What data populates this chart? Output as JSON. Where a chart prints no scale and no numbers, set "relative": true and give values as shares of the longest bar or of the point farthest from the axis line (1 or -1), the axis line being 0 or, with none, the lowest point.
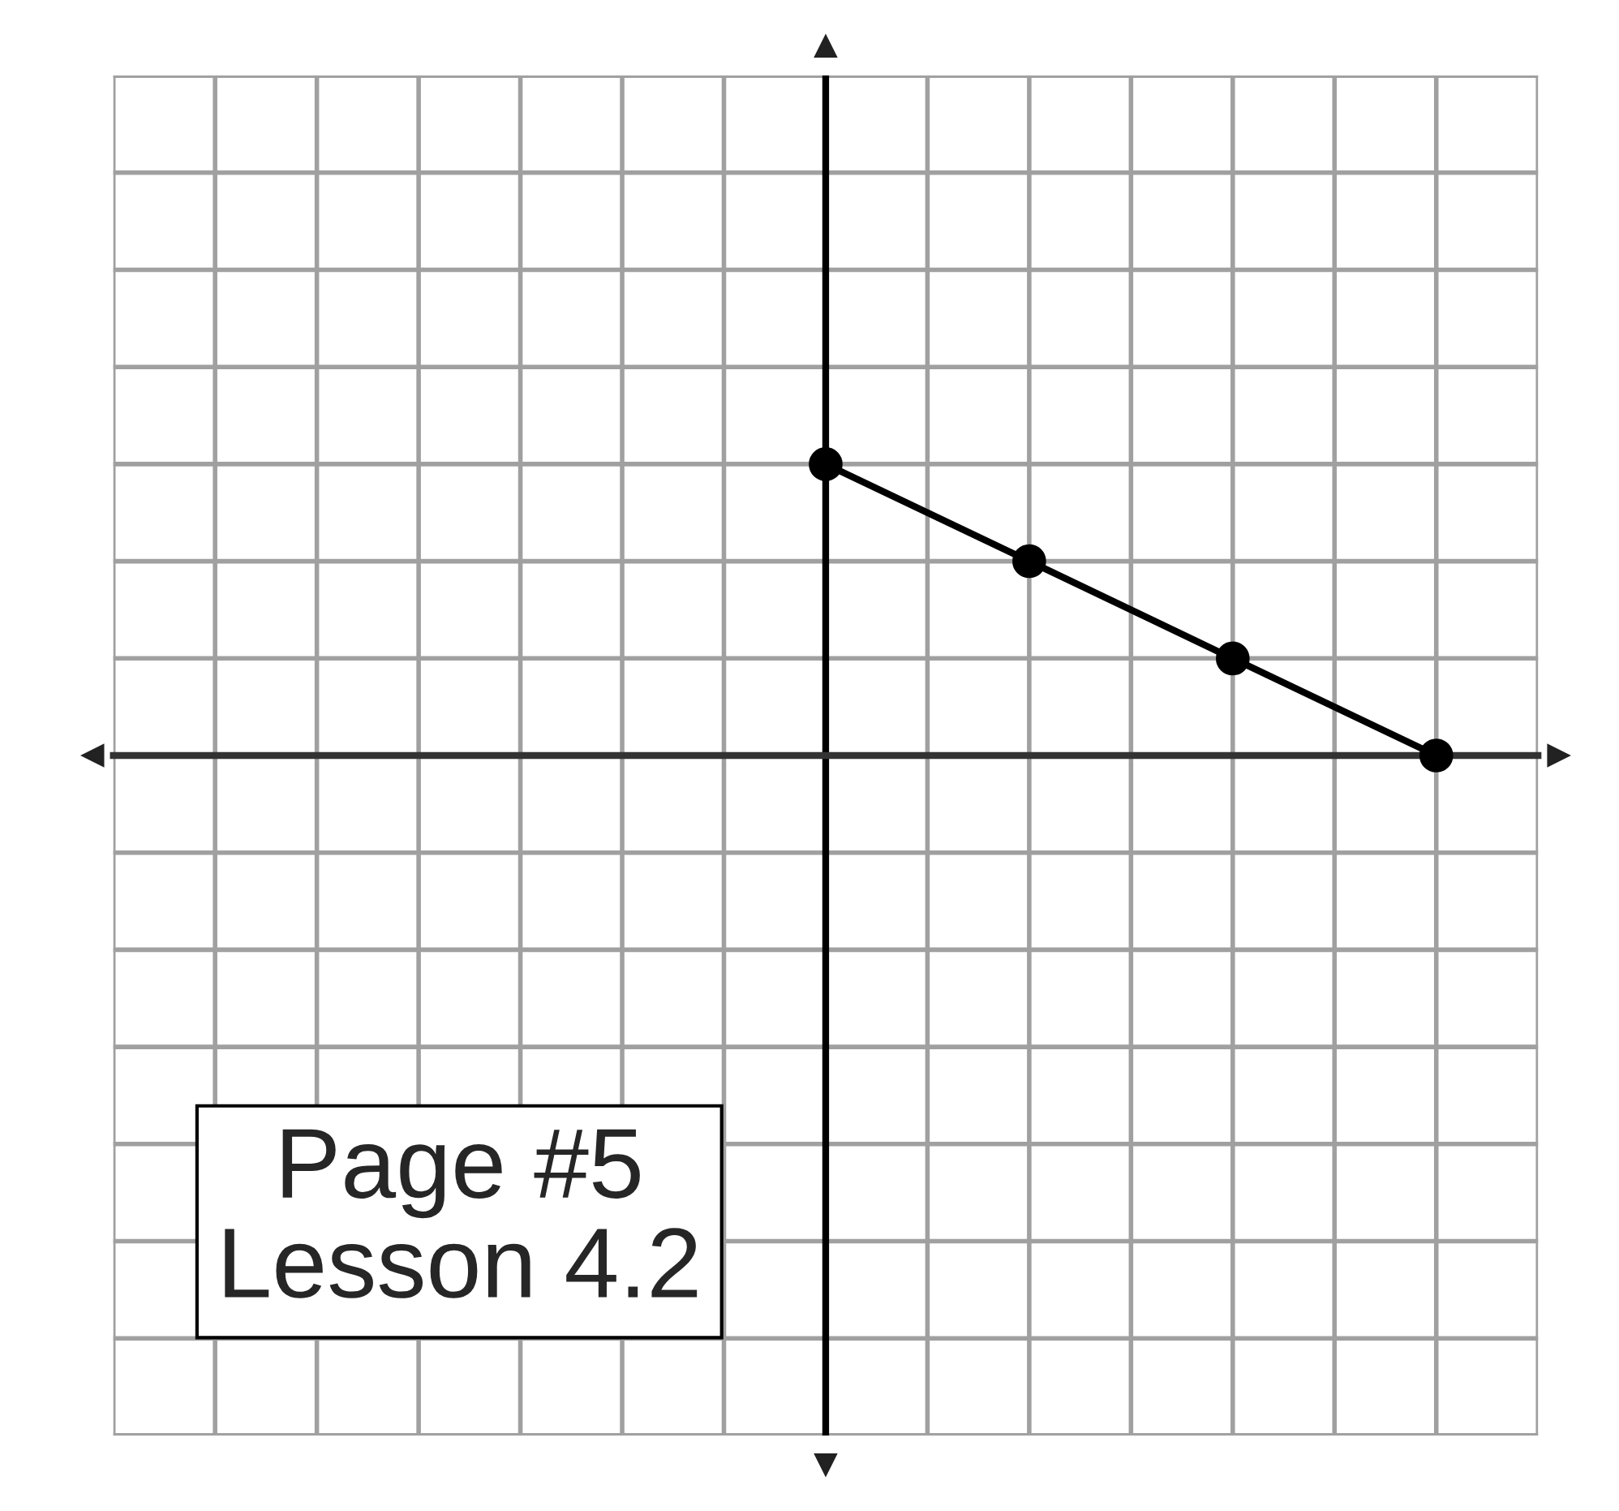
{
  "chart_data": {
    "type": "line",
    "relative": true,
    "categories": [
      null,
      null,
      null,
      null
    ],
    "series": [
      {
        "color": "#000000",
        "values": [
          1,
          0.667,
          0.333,
          0
        ]
      }
    ],
    "marker": "circle",
    "line_style": "solid",
    "grid": true,
    "annotations": [
      "Page #5",
      "Lesson 4.2"
    ]
  }
}
